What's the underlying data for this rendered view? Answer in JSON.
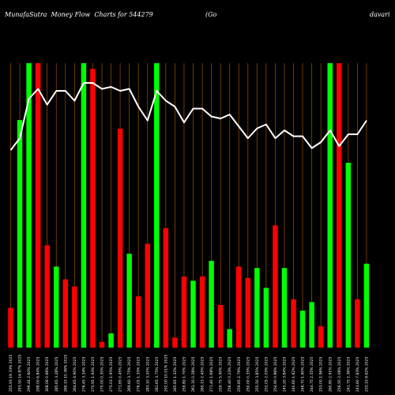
{
  "header": {
    "title_left": "MunafaSutra  Money Flow  Charts for 544279",
    "title_mid": "(Go",
    "title_right": "davari"
  },
  "chart_data": {
    "type": "bar",
    "ylim": [
      0,
      100
    ],
    "line_ylim": [
      0,
      100
    ],
    "grid": "vertical",
    "colors": {
      "up": "#00ff00",
      "down": "#ff0000",
      "line": "#ffffff",
      "grid": "#8b4a00",
      "background": "#000000"
    },
    "categories": [
      "255.93 19.33% 2025",
      "293.50 14.87% 2025",
      "299.44 2.60% 2025",
      "298.00 6.84% 2025",
      "308.06 0.66% 2025",
      "285.65 3.28% 2025",
      "269.15 10.36% 2025",
      "264.65 4.90% 2025",
      "276.45 3.34% 2025",
      "270.95 1.94% 2025",
      "270.00 0.30% 2025",
      "275.03 1.95% 2025",
      "271.65 0.45% 2025",
      "269.60 3.75% 2025",
      "276.05 1.35% 2025",
      "283.10 3.20% 2025",
      "281.65 3.75% 2025",
      "292.00 10.01% 2025",
      "265.85 1.32% 2025",
      "259.80 1.70% 2025",
      "261.35 0.28% 2025",
      "265.15 2.45% 2025",
      "271.40 1.68% 2025",
      "259.75 5.90% 2025",
      "256.40 0.23% 2025",
      "259.85 2.79% 2025",
      "250.00 0.35% 2025",
      "255.50 3.85% 2025",
      "252.05 2.05% 2025",
      "254.90 0.86% 2025",
      "245.20 3.84% 2025",
      "240.60 1.82% 2025",
      "246.70 1.90% 2025",
      "244.75 2.55% 2025",
      "253.00 2.96% 2025",
      "260.80 2.91% 2025",
      "256.50 2.08% 2025",
      "241.75 2.36% 2025",
      "243.60 7.83% 2025",
      "233.15 8.62% 2025"
    ],
    "bars": [
      {
        "color": "down",
        "value": 14
      },
      {
        "color": "up",
        "value": 80
      },
      {
        "color": "up",
        "value": 100
      },
      {
        "color": "down",
        "value": 100
      },
      {
        "color": "down",
        "value": 36
      },
      {
        "color": "up",
        "value": 28.5
      },
      {
        "color": "down",
        "value": 24
      },
      {
        "color": "down",
        "value": 21.5
      },
      {
        "color": "up",
        "value": 100
      },
      {
        "color": "down",
        "value": 98
      },
      {
        "color": "down",
        "value": 2
      },
      {
        "color": "up",
        "value": 5
      },
      {
        "color": "down",
        "value": 77
      },
      {
        "color": "up",
        "value": 33
      },
      {
        "color": "down",
        "value": 18
      },
      {
        "color": "down",
        "value": 36.5
      },
      {
        "color": "up",
        "value": 100
      },
      {
        "color": "down",
        "value": 42
      },
      {
        "color": "down",
        "value": 3.5
      },
      {
        "color": "down",
        "value": 25
      },
      {
        "color": "up",
        "value": 23.5
      },
      {
        "color": "down",
        "value": 25
      },
      {
        "color": "up",
        "value": 30.5
      },
      {
        "color": "down",
        "value": 15
      },
      {
        "color": "up",
        "value": 6.5
      },
      {
        "color": "down",
        "value": 28.5
      },
      {
        "color": "down",
        "value": 24.5
      },
      {
        "color": "up",
        "value": 28
      },
      {
        "color": "up",
        "value": 21
      },
      {
        "color": "down",
        "value": 43
      },
      {
        "color": "up",
        "value": 28
      },
      {
        "color": "down",
        "value": 17
      },
      {
        "color": "up",
        "value": 13
      },
      {
        "color": "up",
        "value": 16
      },
      {
        "color": "down",
        "value": 7.5
      },
      {
        "color": "up",
        "value": 100
      },
      {
        "color": "down",
        "value": 100
      },
      {
        "color": "up",
        "value": 65
      },
      {
        "color": "down",
        "value": 17
      },
      {
        "color": "up",
        "value": 29.5
      }
    ],
    "line": [
      62,
      65,
      75,
      77.5,
      73.5,
      77,
      77,
      74.5,
      79,
      79,
      77.5,
      78,
      77,
      77.5,
      73,
      69.5,
      77,
      74.5,
      73,
      69,
      72.5,
      72.5,
      70.5,
      70,
      71,
      68,
      65,
      67.5,
      68.5,
      65,
      67,
      65.5,
      65.5,
      62.5,
      64,
      67,
      63,
      66,
      66,
      69.5
    ]
  }
}
